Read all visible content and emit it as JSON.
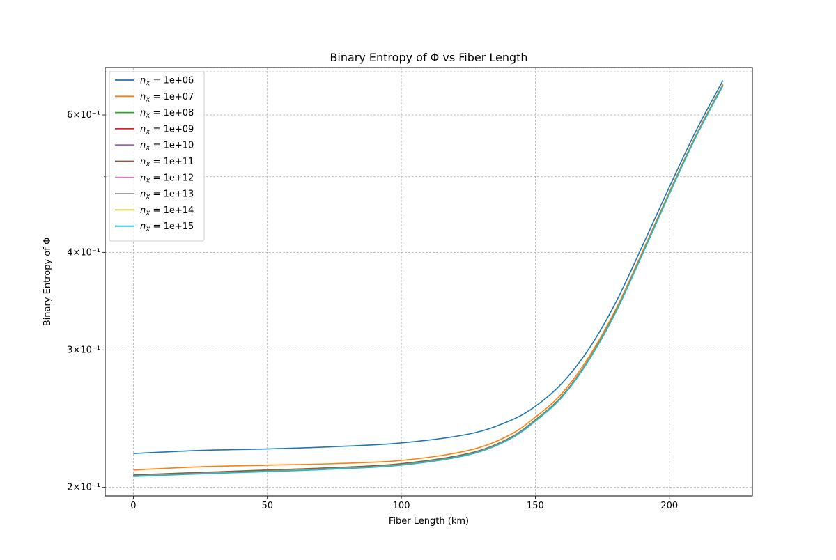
{
  "chart_data": {
    "type": "line",
    "title": "Binary Entropy of Φ vs Fiber Length",
    "xlabel": "Fiber Length (km)",
    "ylabel": "Binary Entropy of Φ",
    "xlim": [
      -10.5,
      231
    ],
    "ylim": [
      0.195,
      0.69
    ],
    "yscale": "log",
    "grid": true,
    "legend_position": "top-left",
    "x_ticks": [
      0,
      50,
      100,
      150,
      200
    ],
    "y_ticks": [
      {
        "value": 0.2,
        "label": "2×10⁻¹"
      },
      {
        "value": 0.3,
        "label": "3×10⁻¹"
      },
      {
        "value": 0.4,
        "label": "4×10⁻¹"
      },
      {
        "value": 0.6,
        "label": "6×10⁻¹"
      }
    ],
    "y_minor_ticks": [
      0.5
    ],
    "x": [
      0,
      25,
      50,
      75,
      100,
      125,
      140,
      150,
      160,
      170,
      180,
      190,
      200,
      210,
      220
    ],
    "series": [
      {
        "name": "1e+06",
        "color": "#1f77b4",
        "values": [
          0.221,
          0.223,
          0.224,
          0.2255,
          0.228,
          0.234,
          0.243,
          0.254,
          0.272,
          0.301,
          0.345,
          0.408,
          0.485,
          0.573,
          0.664
        ]
      },
      {
        "name": "1e+07",
        "color": "#ff7f0e",
        "values": [
          0.2105,
          0.2125,
          0.2135,
          0.2145,
          0.2165,
          0.223,
          0.233,
          0.246,
          0.264,
          0.294,
          0.338,
          0.401,
          0.478,
          0.566,
          0.657
        ]
      },
      {
        "name": "1e+08",
        "color": "#2ca02c",
        "values": [
          0.2075,
          0.209,
          0.2105,
          0.212,
          0.2145,
          0.221,
          0.231,
          0.244,
          0.262,
          0.292,
          0.336,
          0.399,
          0.476,
          0.564,
          0.655
        ]
      },
      {
        "name": "1e+09",
        "color": "#d62728",
        "values": [
          0.2072,
          0.2088,
          0.2102,
          0.2118,
          0.2142,
          0.2208,
          0.2308,
          0.2438,
          0.2618,
          0.2918,
          0.3358,
          0.3988,
          0.4758,
          0.5638,
          0.6548
        ]
      },
      {
        "name": "1e+10",
        "color": "#9467bd",
        "values": [
          0.207,
          0.2086,
          0.21,
          0.2116,
          0.214,
          0.2206,
          0.2306,
          0.2436,
          0.2616,
          0.2916,
          0.3356,
          0.3986,
          0.4756,
          0.5636,
          0.6546
        ]
      },
      {
        "name": "1e+11",
        "color": "#8c564b",
        "values": [
          0.2069,
          0.2085,
          0.2099,
          0.2115,
          0.2139,
          0.2205,
          0.2305,
          0.2435,
          0.2615,
          0.2915,
          0.3355,
          0.3985,
          0.4755,
          0.5635,
          0.6545
        ]
      },
      {
        "name": "1e+12",
        "color": "#e377c2",
        "values": [
          0.2068,
          0.2084,
          0.2098,
          0.2114,
          0.2138,
          0.2204,
          0.2304,
          0.2434,
          0.2614,
          0.2914,
          0.3354,
          0.3984,
          0.4754,
          0.5634,
          0.6544
        ]
      },
      {
        "name": "1e+13",
        "color": "#7f7f7f",
        "values": [
          0.2067,
          0.2083,
          0.2097,
          0.2113,
          0.2137,
          0.2203,
          0.2303,
          0.2433,
          0.2613,
          0.2913,
          0.3353,
          0.3983,
          0.4753,
          0.5633,
          0.6543
        ]
      },
      {
        "name": "1e+14",
        "color": "#bcbd22",
        "values": [
          0.2066,
          0.2082,
          0.2096,
          0.2112,
          0.2136,
          0.2202,
          0.2302,
          0.2432,
          0.2612,
          0.2912,
          0.3352,
          0.3982,
          0.4752,
          0.5632,
          0.6542
        ]
      },
      {
        "name": "1e+15",
        "color": "#17becf",
        "values": [
          0.2065,
          0.2081,
          0.2095,
          0.2111,
          0.2135,
          0.2201,
          0.2301,
          0.2431,
          0.2611,
          0.2911,
          0.3351,
          0.3981,
          0.4751,
          0.5631,
          0.6541
        ]
      }
    ]
  }
}
